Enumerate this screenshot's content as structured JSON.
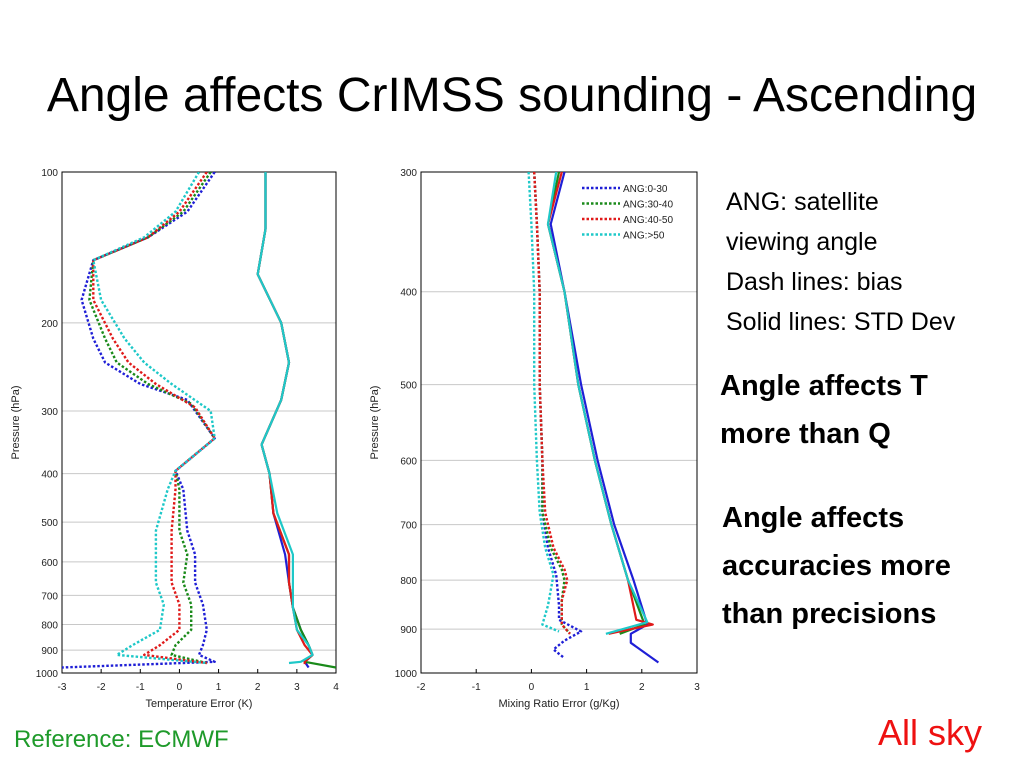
{
  "slide": {
    "title": "Angle affects CrIMSS sounding - Ascending",
    "notes": [
      "ANG: satellite",
      "viewing angle",
      "Dash lines: bias",
      "Solid lines: STD Dev"
    ],
    "callout1": [
      "Angle affects T",
      "more than Q"
    ],
    "callout2": [
      "Angle affects",
      "accuracies more",
      "than precisions"
    ],
    "reference": "Reference: ECMWF",
    "sky": "All sky"
  },
  "chart_data": [
    {
      "type": "line",
      "xlabel": "Temperature Error (K)",
      "ylabel": "Pressure (hPa)",
      "xlim": [
        -3,
        4
      ],
      "ylim": [
        1000,
        100
      ],
      "yscale": "log",
      "xticks": [
        -3,
        -2,
        -1,
        0,
        1,
        2,
        3,
        4
      ],
      "yticks": [
        100,
        200,
        300,
        400,
        500,
        600,
        700,
        800,
        900,
        1000
      ],
      "grid": "horizontal",
      "series": [
        {
          "name": "ANG:0-30",
          "style": "dash",
          "color": "#1f1fd6",
          "points": [
            [
              0.9,
              100
            ],
            [
              0.2,
              120
            ],
            [
              -0.8,
              135
            ],
            [
              -2.2,
              150
            ],
            [
              -2.5,
              180
            ],
            [
              -2.2,
              215
            ],
            [
              -1.9,
              240
            ],
            [
              -1.0,
              265
            ],
            [
              0.2,
              285
            ],
            [
              0.9,
              340
            ],
            [
              -0.1,
              395
            ],
            [
              0.1,
              430
            ],
            [
              0.2,
              520
            ],
            [
              0.4,
              580
            ],
            [
              0.4,
              660
            ],
            [
              0.6,
              730
            ],
            [
              0.7,
              820
            ],
            [
              0.6,
              880
            ],
            [
              0.5,
              920
            ],
            [
              0.9,
              950
            ],
            [
              -3.0,
              975
            ]
          ]
        },
        {
          "name": "ANG:30-40",
          "style": "dash",
          "color": "#1a8a1a",
          "points": [
            [
              0.8,
              100
            ],
            [
              0.1,
              120
            ],
            [
              -0.8,
              135
            ],
            [
              -2.2,
              150
            ],
            [
              -2.3,
              180
            ],
            [
              -1.9,
              215
            ],
            [
              -1.6,
              240
            ],
            [
              -0.8,
              265
            ],
            [
              0.3,
              290
            ],
            [
              0.9,
              340
            ],
            [
              -0.1,
              395
            ],
            [
              0.0,
              430
            ],
            [
              0.0,
              520
            ],
            [
              0.2,
              580
            ],
            [
              0.1,
              660
            ],
            [
              0.3,
              730
            ],
            [
              0.3,
              820
            ],
            [
              -0.1,
              880
            ],
            [
              -0.2,
              920
            ],
            [
              0.7,
              955
            ]
          ]
        },
        {
          "name": "ANG:40-50",
          "style": "dash",
          "color": "#e01a1a",
          "points": [
            [
              0.7,
              100
            ],
            [
              0.0,
              120
            ],
            [
              -0.8,
              135
            ],
            [
              -2.2,
              150
            ],
            [
              -2.2,
              180
            ],
            [
              -1.7,
              215
            ],
            [
              -1.3,
              240
            ],
            [
              -0.6,
              265
            ],
            [
              0.4,
              295
            ],
            [
              0.9,
              340
            ],
            [
              -0.1,
              395
            ],
            [
              -0.1,
              430
            ],
            [
              -0.2,
              520
            ],
            [
              -0.2,
              580
            ],
            [
              -0.2,
              660
            ],
            [
              0.0,
              730
            ],
            [
              0.0,
              820
            ],
            [
              -0.5,
              880
            ],
            [
              -0.9,
              920
            ],
            [
              0.7,
              955
            ]
          ]
        },
        {
          "name": "ANG:>50",
          "style": "dash",
          "color": "#1ec8c8",
          "points": [
            [
              0.5,
              100
            ],
            [
              -0.1,
              120
            ],
            [
              -0.9,
              135
            ],
            [
              -2.2,
              150
            ],
            [
              -2.0,
              180
            ],
            [
              -1.4,
              215
            ],
            [
              -0.9,
              240
            ],
            [
              -0.2,
              265
            ],
            [
              0.8,
              300
            ],
            [
              0.9,
              340
            ],
            [
              -0.1,
              395
            ],
            [
              -0.3,
              430
            ],
            [
              -0.6,
              520
            ],
            [
              -0.6,
              580
            ],
            [
              -0.6,
              660
            ],
            [
              -0.4,
              730
            ],
            [
              -0.5,
              820
            ],
            [
              -1.2,
              880
            ],
            [
              -1.6,
              920
            ],
            [
              0.7,
              955
            ]
          ]
        },
        {
          "name": "",
          "style": "solid",
          "color": "#1f1fd6",
          "points": [
            [
              2.2,
              100
            ],
            [
              2.2,
              130
            ],
            [
              2.0,
              160
            ],
            [
              2.6,
              200
            ],
            [
              2.8,
              240
            ],
            [
              2.6,
              285
            ],
            [
              2.1,
              350
            ],
            [
              2.3,
              400
            ],
            [
              2.4,
              480
            ],
            [
              2.7,
              580
            ],
            [
              2.8,
              660
            ],
            [
              2.9,
              740
            ],
            [
              3.1,
              820
            ],
            [
              3.3,
              880
            ],
            [
              3.4,
              920
            ],
            [
              3.2,
              950
            ],
            [
              3.3,
              975
            ]
          ]
        },
        {
          "name": "",
          "style": "solid",
          "color": "#1a8a1a",
          "points": [
            [
              2.2,
              100
            ],
            [
              2.2,
              130
            ],
            [
              2.0,
              160
            ],
            [
              2.6,
              200
            ],
            [
              2.8,
              240
            ],
            [
              2.6,
              285
            ],
            [
              2.1,
              350
            ],
            [
              2.3,
              400
            ],
            [
              2.4,
              480
            ],
            [
              2.8,
              580
            ],
            [
              2.8,
              660
            ],
            [
              2.9,
              740
            ],
            [
              3.1,
              820
            ],
            [
              3.3,
              880
            ],
            [
              3.4,
              920
            ],
            [
              3.2,
              950
            ],
            [
              4.0,
              975
            ]
          ]
        },
        {
          "name": "",
          "style": "solid",
          "color": "#e01a1a",
          "points": [
            [
              2.2,
              100
            ],
            [
              2.2,
              130
            ],
            [
              2.0,
              160
            ],
            [
              2.6,
              200
            ],
            [
              2.8,
              240
            ],
            [
              2.6,
              285
            ],
            [
              2.1,
              350
            ],
            [
              2.3,
              400
            ],
            [
              2.4,
              480
            ],
            [
              2.8,
              580
            ],
            [
              2.8,
              660
            ],
            [
              2.9,
              740
            ],
            [
              3.0,
              820
            ],
            [
              3.2,
              880
            ],
            [
              3.4,
              920
            ],
            [
              3.2,
              950
            ],
            [
              3.2,
              960
            ]
          ]
        },
        {
          "name": "",
          "style": "solid",
          "color": "#1ec8c8",
          "points": [
            [
              2.2,
              100
            ],
            [
              2.2,
              130
            ],
            [
              2.0,
              160
            ],
            [
              2.6,
              200
            ],
            [
              2.8,
              240
            ],
            [
              2.6,
              285
            ],
            [
              2.1,
              350
            ],
            [
              2.3,
              400
            ],
            [
              2.5,
              480
            ],
            [
              2.9,
              580
            ],
            [
              2.9,
              660
            ],
            [
              2.9,
              740
            ],
            [
              3.0,
              820
            ],
            [
              3.3,
              880
            ],
            [
              3.4,
              920
            ],
            [
              3.1,
              950
            ],
            [
              2.8,
              955
            ]
          ]
        }
      ]
    },
    {
      "type": "line",
      "xlabel": "Mixing Ratio Error (g/Kg)",
      "ylabel": "Pressure (hPa)",
      "xlim": [
        -2,
        3
      ],
      "ylim": [
        1000,
        300
      ],
      "yscale": "log",
      "xticks": [
        -2,
        -1,
        0,
        1,
        2,
        3
      ],
      "yticks": [
        300,
        400,
        500,
        600,
        700,
        800,
        900,
        1000
      ],
      "grid": "horizontal",
      "legend": "top-right",
      "series": [
        {
          "name": "ANG:0-30",
          "style": "dash",
          "color": "#1f1fd6",
          "points": [
            [
              0.05,
              300
            ],
            [
              0.1,
              340
            ],
            [
              0.15,
              400
            ],
            [
              0.15,
              500
            ],
            [
              0.2,
              600
            ],
            [
              0.2,
              680
            ],
            [
              0.3,
              740
            ],
            [
              0.45,
              790
            ],
            [
              0.5,
              850
            ],
            [
              0.5,
              880
            ],
            [
              0.9,
              905
            ],
            [
              0.6,
              925
            ],
            [
              0.4,
              945
            ],
            [
              0.6,
              965
            ]
          ]
        },
        {
          "name": "ANG:30-40",
          "style": "dash",
          "color": "#1a8a1a",
          "points": [
            [
              0.05,
              300
            ],
            [
              0.1,
              340
            ],
            [
              0.15,
              400
            ],
            [
              0.15,
              500
            ],
            [
              0.2,
              600
            ],
            [
              0.2,
              680
            ],
            [
              0.35,
              740
            ],
            [
              0.55,
              780
            ],
            [
              0.6,
              800
            ],
            [
              0.55,
              840
            ],
            [
              0.55,
              890
            ],
            [
              0.7,
              910
            ]
          ]
        },
        {
          "name": "ANG:40-50",
          "style": "dash",
          "color": "#e01a1a",
          "points": [
            [
              0.05,
              300
            ],
            [
              0.1,
              340
            ],
            [
              0.15,
              400
            ],
            [
              0.15,
              500
            ],
            [
              0.2,
              600
            ],
            [
              0.25,
              680
            ],
            [
              0.4,
              740
            ],
            [
              0.6,
              780
            ],
            [
              0.65,
              800
            ],
            [
              0.55,
              840
            ],
            [
              0.55,
              890
            ],
            [
              0.7,
              910
            ]
          ]
        },
        {
          "name": "ANG:>50",
          "style": "dash",
          "color": "#1ec8c8",
          "points": [
            [
              -0.05,
              300
            ],
            [
              0.0,
              340
            ],
            [
              0.05,
              400
            ],
            [
              0.05,
              500
            ],
            [
              0.1,
              600
            ],
            [
              0.15,
              680
            ],
            [
              0.25,
              740
            ],
            [
              0.4,
              790
            ],
            [
              0.3,
              850
            ],
            [
              0.2,
              890
            ],
            [
              0.5,
              905
            ]
          ]
        },
        {
          "name": "",
          "style": "solid",
          "color": "#1f1fd6",
          "points": [
            [
              0.6,
              300
            ],
            [
              0.35,
              340
            ],
            [
              0.6,
              400
            ],
            [
              0.9,
              500
            ],
            [
              1.2,
              600
            ],
            [
              1.5,
              700
            ],
            [
              1.85,
              800
            ],
            [
              2.1,
              890
            ],
            [
              1.8,
              910
            ],
            [
              1.8,
              930
            ],
            [
              2.3,
              975
            ]
          ]
        },
        {
          "name": "",
          "style": "solid",
          "color": "#1a8a1a",
          "points": [
            [
              0.5,
              300
            ],
            [
              0.3,
              340
            ],
            [
              0.6,
              400
            ],
            [
              0.85,
              500
            ],
            [
              1.15,
              600
            ],
            [
              1.45,
              700
            ],
            [
              1.75,
              800
            ],
            [
              2.05,
              890
            ],
            [
              1.6,
              910
            ]
          ]
        },
        {
          "name": "",
          "style": "solid",
          "color": "#e01a1a",
          "points": [
            [
              0.55,
              300
            ],
            [
              0.3,
              340
            ],
            [
              0.6,
              400
            ],
            [
              0.85,
              500
            ],
            [
              1.15,
              600
            ],
            [
              1.45,
              700
            ],
            [
              1.75,
              800
            ],
            [
              1.9,
              880
            ],
            [
              2.2,
              890
            ],
            [
              1.4,
              910
            ]
          ]
        },
        {
          "name": "",
          "style": "solid",
          "color": "#1ec8c8",
          "points": [
            [
              0.45,
              300
            ],
            [
              0.3,
              340
            ],
            [
              0.6,
              400
            ],
            [
              0.85,
              500
            ],
            [
              1.15,
              600
            ],
            [
              1.45,
              700
            ],
            [
              1.75,
              800
            ],
            [
              2.1,
              885
            ],
            [
              1.35,
              910
            ]
          ]
        }
      ]
    }
  ]
}
